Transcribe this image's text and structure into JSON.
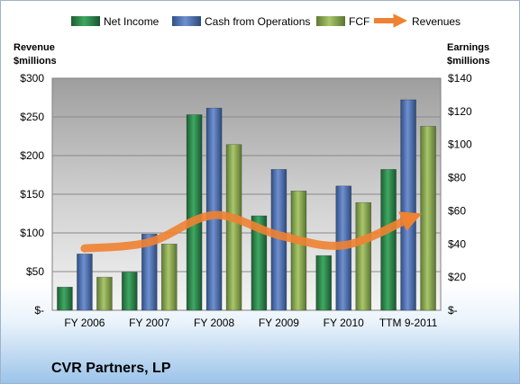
{
  "chart_data": {
    "type": "bar",
    "company": "CVR Partners, LP",
    "categories": [
      "FY 2006",
      "FY 2007",
      "FY 2008",
      "FY 2009",
      "FY 2010",
      "TTM 9-2011"
    ],
    "series": [
      {
        "name": "Net Income",
        "axis": "right",
        "values": [
          14,
          23,
          118,
          57,
          33,
          85
        ]
      },
      {
        "name": "Cash from Operations",
        "axis": "right",
        "values": [
          34,
          46,
          122,
          85,
          75,
          127
        ]
      },
      {
        "name": "FCF",
        "axis": "right",
        "values": [
          20,
          40,
          100,
          72,
          65,
          111
        ]
      },
      {
        "name": "Revenues",
        "axis": "left",
        "type": "line-arrow",
        "values": [
          80,
          88,
          123,
          97,
          84,
          118
        ]
      }
    ],
    "y_left": {
      "label_line1": "Revenue",
      "label_line2": "$millions",
      "ylim": [
        0,
        300
      ],
      "ticks": [
        "$-",
        "$50",
        "$100",
        "$150",
        "$200",
        "$250",
        "$300"
      ]
    },
    "y_right": {
      "label_line1": "Earnings",
      "label_line2": "$millions",
      "ylim": [
        0,
        140
      ],
      "ticks": [
        "$-",
        "$20",
        "$40",
        "$60",
        "$80",
        "$100",
        "$120",
        "$140"
      ]
    },
    "grid": true,
    "legend_position": "top",
    "colors": {
      "Net Income": "#2e8b4a",
      "Cash from Operations": "#4f72b8",
      "FCF": "#8fae52",
      "Revenues": "#ef8232"
    }
  }
}
